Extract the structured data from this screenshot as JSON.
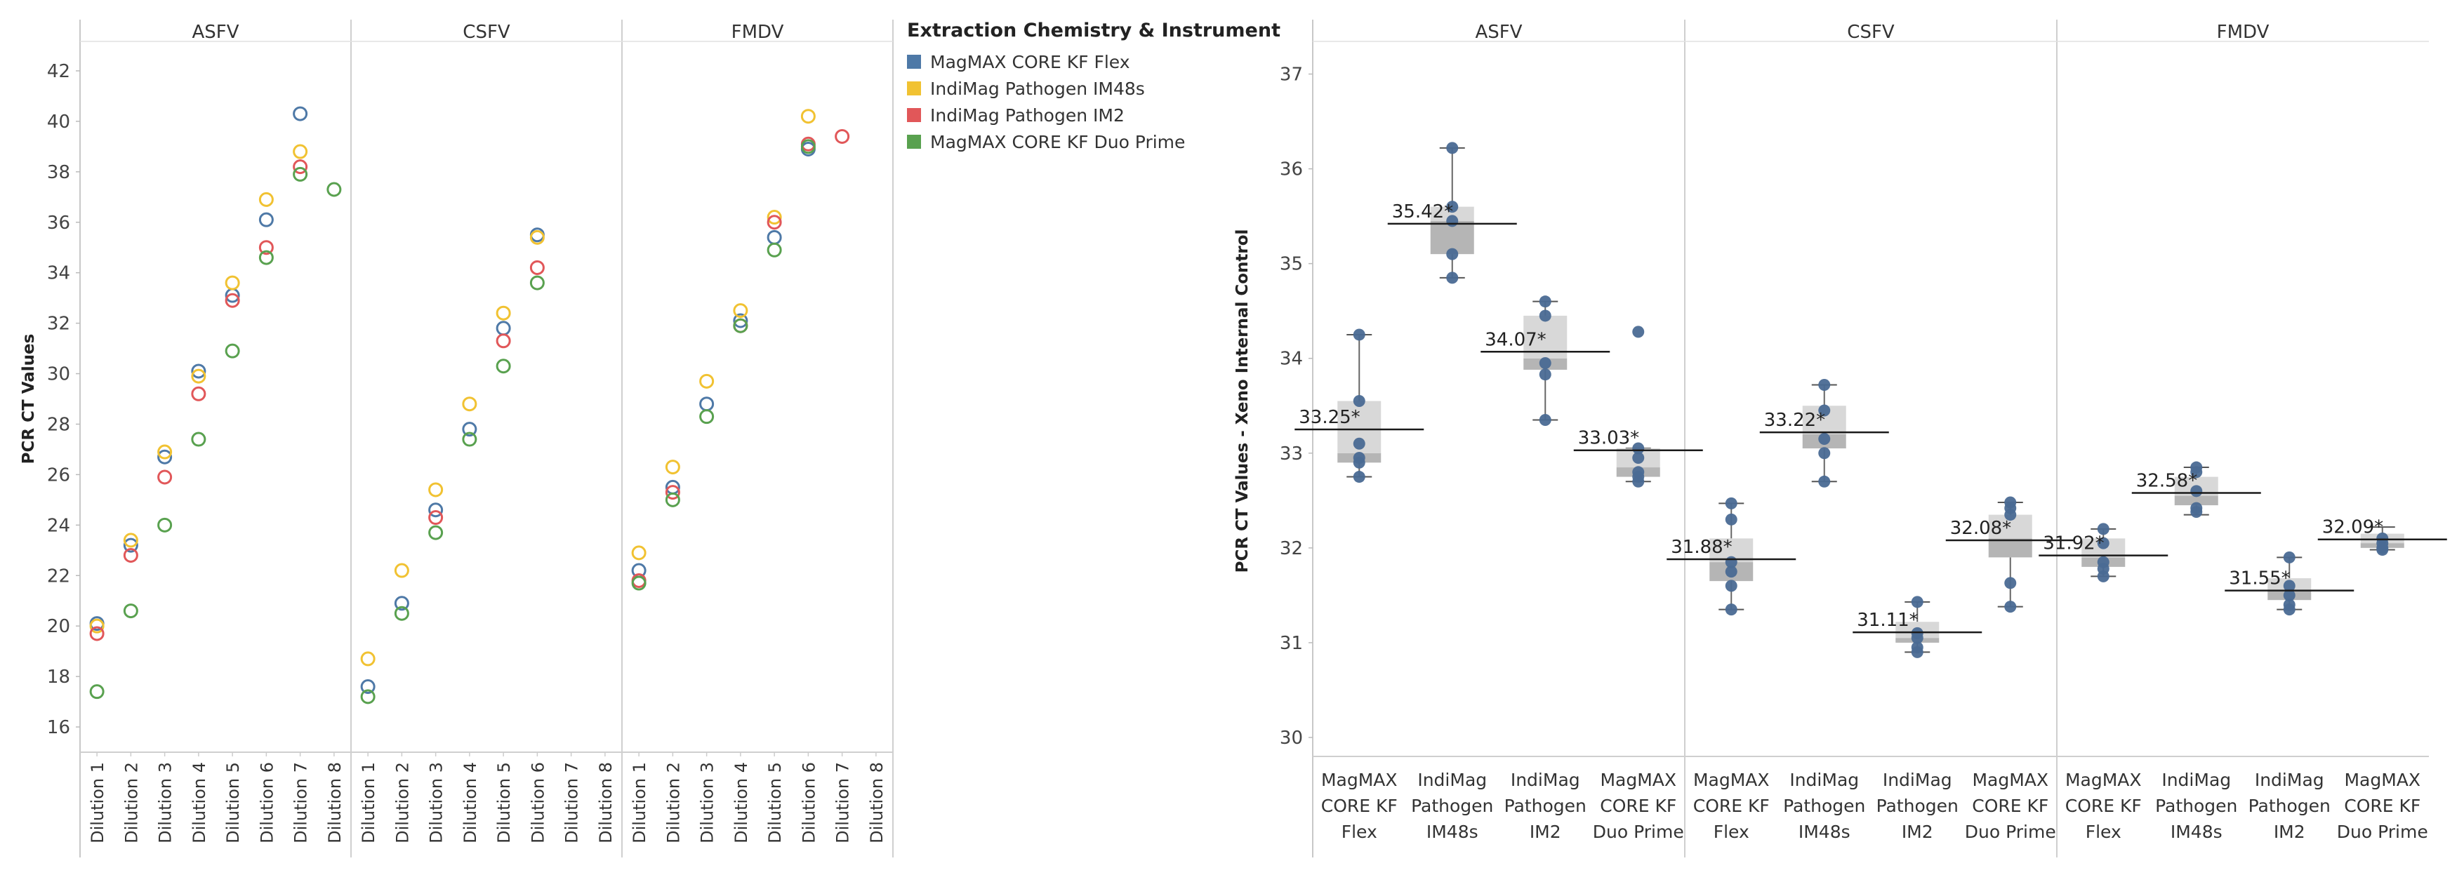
{
  "colors": {
    "MagMAX CORE KF Flex": "#4e79a7",
    "IndiMag Pathogen IM48s": "#f1c232",
    "IndiMag Pathogen IM2": "#e15759",
    "MagMAX CORE KF Duo Prime": "#59a14f",
    "box_point": "#4a6a94",
    "box_fill": "#bdbdbd"
  },
  "legend": {
    "title": "Extraction Chemistry & Instrument",
    "items": [
      "MagMAX CORE KF Flex",
      "IndiMag Pathogen IM48s",
      "IndiMag Pathogen IM2",
      "MagMAX CORE KF Duo Prime"
    ]
  },
  "chart_data": [
    {
      "type": "scatter",
      "title": "",
      "ylabel": "PCR CT Values",
      "xlabel": "",
      "ylim": [
        15,
        43
      ],
      "yticks": [
        16,
        18,
        20,
        22,
        24,
        26,
        28,
        30,
        32,
        34,
        36,
        38,
        40,
        42
      ],
      "panels": [
        "ASFV",
        "CSFV",
        "FMDV"
      ],
      "categories": [
        "Dilution 1",
        "Dilution 2",
        "Dilution 3",
        "Dilution 4",
        "Dilution 5",
        "Dilution 6",
        "Dilution 7",
        "Dilution 8"
      ],
      "series": [
        {
          "name": "MagMAX CORE KF Flex",
          "panels": {
            "ASFV": [
              20.1,
              23.2,
              26.7,
              30.1,
              33.1,
              36.1,
              40.3,
              null
            ],
            "CSFV": [
              17.6,
              20.9,
              24.6,
              27.8,
              31.8,
              35.5,
              null,
              null
            ],
            "FMDV": [
              22.2,
              25.5,
              28.8,
              32.1,
              35.4,
              38.9,
              null,
              null
            ]
          }
        },
        {
          "name": "IndiMag Pathogen IM48s",
          "panels": {
            "ASFV": [
              20.0,
              23.4,
              26.9,
              29.9,
              33.6,
              36.9,
              38.8,
              null
            ],
            "CSFV": [
              18.7,
              22.2,
              25.4,
              28.8,
              32.4,
              35.4,
              null,
              null
            ],
            "FMDV": [
              22.9,
              26.3,
              29.7,
              32.5,
              36.2,
              40.2,
              null,
              null
            ]
          }
        },
        {
          "name": "IndiMag Pathogen IM2",
          "panels": {
            "ASFV": [
              19.7,
              22.8,
              25.9,
              29.2,
              32.9,
              35.0,
              38.2,
              null
            ],
            "CSFV": [
              null,
              null,
              24.3,
              null,
              31.3,
              34.2,
              null,
              null
            ],
            "FMDV": [
              21.8,
              25.3,
              null,
              31.9,
              36.0,
              39.1,
              39.4,
              null
            ]
          }
        },
        {
          "name": "MagMAX CORE KF Duo Prime",
          "panels": {
            "ASFV": [
              17.4,
              20.6,
              24.0,
              27.4,
              30.9,
              34.6,
              37.9,
              37.3
            ],
            "CSFV": [
              17.2,
              20.5,
              23.7,
              27.4,
              30.3,
              33.6,
              null,
              null
            ],
            "FMDV": [
              21.7,
              25.0,
              28.3,
              31.9,
              34.9,
              39.0,
              null,
              null
            ]
          }
        }
      ]
    },
    {
      "type": "box",
      "title": "",
      "ylabel": "PCR CT Values - Xeno Internal Control",
      "xlabel": "",
      "ylim": [
        29.8,
        37.3
      ],
      "yticks": [
        30,
        31,
        32,
        33,
        34,
        35,
        36,
        37
      ],
      "panels": [
        "ASFV",
        "CSFV",
        "FMDV"
      ],
      "categories": [
        [
          "MagMAX",
          "CORE KF",
          "Flex"
        ],
        [
          "IndiMag",
          "Pathogen",
          "IM48s"
        ],
        [
          "IndiMag",
          "Pathogen",
          "IM2"
        ],
        [
          "MagMAX",
          "CORE KF",
          "Duo Prime"
        ]
      ],
      "boxes": {
        "ASFV": [
          {
            "label": "33.25*",
            "mean": 33.25,
            "min": 32.75,
            "q1": 32.9,
            "median": 33.0,
            "q3": 33.55,
            "max": 34.25,
            "points": [
              32.75,
              32.9,
              32.95,
              33.1,
              33.55,
              34.25
            ]
          },
          {
            "label": "35.42*",
            "mean": 35.42,
            "min": 34.85,
            "q1": 35.1,
            "median": 35.45,
            "q3": 35.6,
            "max": 36.22,
            "points": [
              34.85,
              35.1,
              35.45,
              35.6,
              36.22
            ]
          },
          {
            "label": "34.07*",
            "mean": 34.07,
            "min": 33.35,
            "q1": 33.88,
            "median": 34.0,
            "q3": 34.45,
            "max": 34.6,
            "points": [
              33.35,
              33.83,
              33.95,
              34.45,
              34.6
            ]
          },
          {
            "label": "33.03*",
            "mean": 33.03,
            "min": 32.7,
            "q1": 32.75,
            "median": 32.85,
            "q3": 33.05,
            "max": 33.05,
            "points": [
              32.7,
              32.75,
              32.8,
              32.95,
              33.05,
              34.28
            ]
          }
        ],
        "CSFV": [
          {
            "label": "31.88*",
            "mean": 31.88,
            "min": 31.35,
            "q1": 31.65,
            "median": 31.85,
            "q3": 32.1,
            "max": 32.47,
            "points": [
              31.35,
              31.6,
              31.75,
              31.85,
              32.3,
              32.47
            ]
          },
          {
            "label": "33.22*",
            "mean": 33.22,
            "min": 32.7,
            "q1": 33.05,
            "median": 33.2,
            "q3": 33.5,
            "max": 33.72,
            "points": [
              32.7,
              33.0,
              33.15,
              33.45,
              33.72
            ]
          },
          {
            "label": "31.11*",
            "mean": 31.11,
            "min": 30.9,
            "q1": 31.0,
            "median": 31.05,
            "q3": 31.22,
            "max": 31.43,
            "points": [
              30.9,
              30.95,
              31.05,
              31.1,
              31.43
            ]
          },
          {
            "label": "32.08*",
            "mean": 32.08,
            "min": 31.38,
            "q1": 31.9,
            "median": 32.1,
            "q3": 32.35,
            "max": 32.48,
            "points": [
              31.38,
              31.63,
              32.35,
              32.42,
              32.48
            ]
          }
        ],
        "FMDV": [
          {
            "label": "31.92*",
            "mean": 31.92,
            "min": 31.7,
            "q1": 31.8,
            "median": 31.9,
            "q3": 32.1,
            "max": 32.2,
            "points": [
              31.7,
              31.78,
              31.85,
              32.05,
              32.2
            ]
          },
          {
            "label": "32.58*",
            "mean": 32.58,
            "min": 32.35,
            "q1": 32.45,
            "median": 32.55,
            "q3": 32.75,
            "max": 32.85,
            "points": [
              32.38,
              32.42,
              32.6,
              32.8,
              32.85
            ]
          },
          {
            "label": "31.55*",
            "mean": 31.55,
            "min": 31.35,
            "q1": 31.45,
            "median": 31.55,
            "q3": 31.68,
            "max": 31.9,
            "points": [
              31.35,
              31.4,
              31.5,
              31.6,
              31.9
            ]
          },
          {
            "label": "32.09*",
            "mean": 32.09,
            "min": 31.98,
            "q1": 32.0,
            "median": 32.05,
            "q3": 32.15,
            "max": 32.22,
            "points": [
              31.98,
              32.0,
              32.05,
              32.1
            ]
          }
        ]
      }
    }
  ]
}
